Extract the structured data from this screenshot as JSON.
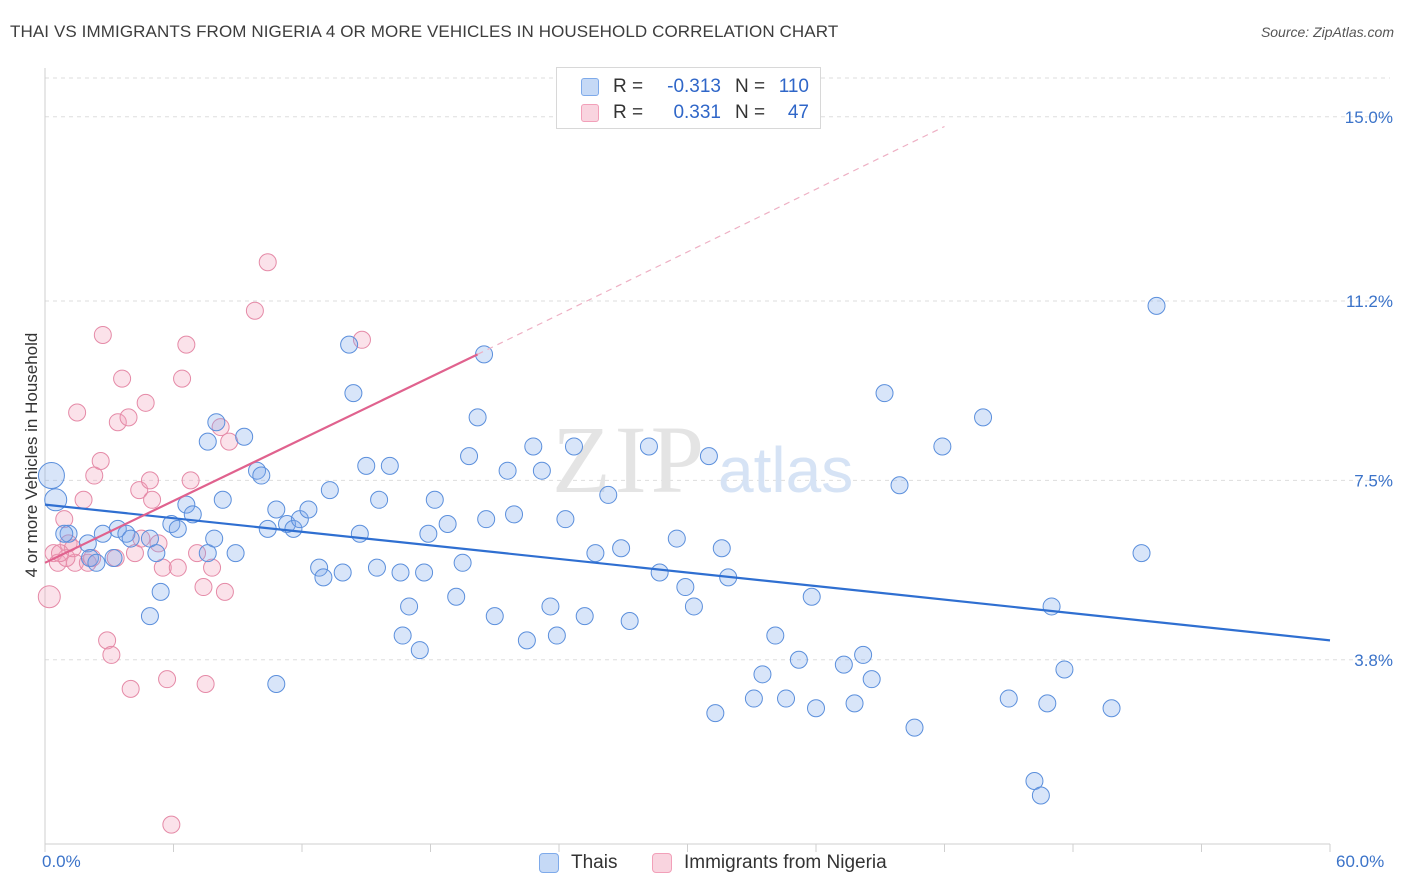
{
  "header": {
    "title": "THAI VS IMMIGRANTS FROM NIGERIA 4 OR MORE VEHICLES IN HOUSEHOLD CORRELATION CHART",
    "source": "Source: ZipAtlas.com"
  },
  "watermark": {
    "zip": "ZIP",
    "atlas": "atlas"
  },
  "legend": {
    "rows": [
      {
        "r_label": "R =",
        "r_value": "-0.313",
        "n_label": "N =",
        "n_value": "110",
        "color": "#7eaaea"
      },
      {
        "r_label": "R =",
        "r_value": "0.331",
        "n_label": "N =",
        "n_value": "47",
        "color": "#f2a0b9"
      }
    ]
  },
  "bottom_legend": {
    "items": [
      {
        "label": "Thais",
        "color": "#7eaaea"
      },
      {
        "label": "Immigrants from Nigeria",
        "color": "#f2a0b9"
      }
    ]
  },
  "colors": {
    "thai_fill": "rgba(126,170,234,0.30)",
    "thai_stroke": "#5b8fdc",
    "thai_line": "#2f6fd1",
    "nigeria_fill": "rgba(242,160,185,0.30)",
    "nigeria_stroke": "#e58aa7",
    "nigeria_line": "#e0628e",
    "grid": "#dddddd",
    "axis_text": "#3b73c9"
  },
  "chart_data": {
    "type": "scatter",
    "title": "THAI VS IMMIGRANTS FROM NIGERIA 4 OR MORE VEHICLES IN HOUSEHOLD CORRELATION CHART",
    "xlabel": "",
    "ylabel": "4 or more Vehicles in Household",
    "xlim": [
      0,
      60
    ],
    "ylim": [
      0,
      15.8
    ],
    "x_tick_labels": [
      "0.0%",
      "60.0%"
    ],
    "y_ticks": [
      3.8,
      7.5,
      11.2,
      15.0
    ],
    "y_tick_labels": [
      "3.8%",
      "7.5%",
      "11.2%",
      "15.0%"
    ],
    "grid": true,
    "legend_position": "top-center",
    "series": [
      {
        "name": "Thais",
        "r": -0.313,
        "n": 110,
        "trend": {
          "x": [
            0,
            60
          ],
          "y": [
            7.0,
            4.2
          ]
        },
        "points": [
          [
            0.3,
            7.6
          ],
          [
            0.5,
            7.1
          ],
          [
            1.1,
            6.4
          ],
          [
            2.0,
            6.2
          ],
          [
            2.1,
            5.9
          ],
          [
            2.4,
            5.8
          ],
          [
            2.7,
            6.4
          ],
          [
            3.2,
            5.9
          ],
          [
            3.4,
            6.5
          ],
          [
            3.8,
            6.4
          ],
          [
            4.0,
            6.3
          ],
          [
            4.9,
            6.3
          ],
          [
            5.2,
            6.0
          ],
          [
            5.4,
            5.2
          ],
          [
            5.9,
            6.6
          ],
          [
            6.2,
            6.5
          ],
          [
            6.6,
            7.0
          ],
          [
            6.9,
            6.8
          ],
          [
            7.6,
            6.0
          ],
          [
            7.9,
            6.3
          ],
          [
            7.6,
            8.3
          ],
          [
            8.0,
            8.7
          ],
          [
            8.3,
            7.1
          ],
          [
            8.9,
            6.0
          ],
          [
            9.3,
            8.4
          ],
          [
            9.9,
            7.7
          ],
          [
            10.1,
            7.6
          ],
          [
            10.4,
            6.5
          ],
          [
            10.8,
            6.9
          ],
          [
            11.3,
            6.6
          ],
          [
            11.6,
            6.5
          ],
          [
            11.9,
            6.7
          ],
          [
            12.3,
            6.9
          ],
          [
            12.8,
            5.7
          ],
          [
            13.0,
            5.5
          ],
          [
            13.3,
            7.3
          ],
          [
            13.9,
            5.6
          ],
          [
            14.2,
            10.3
          ],
          [
            14.4,
            9.3
          ],
          [
            14.7,
            6.4
          ],
          [
            15.0,
            7.8
          ],
          [
            15.5,
            5.7
          ],
          [
            15.6,
            7.1
          ],
          [
            16.1,
            7.8
          ],
          [
            16.6,
            5.6
          ],
          [
            16.7,
            4.3
          ],
          [
            17.0,
            4.9
          ],
          [
            17.5,
            4.0
          ],
          [
            17.7,
            5.6
          ],
          [
            17.9,
            6.4
          ],
          [
            18.2,
            7.1
          ],
          [
            18.8,
            6.6
          ],
          [
            19.2,
            5.1
          ],
          [
            19.5,
            5.8
          ],
          [
            19.8,
            8.0
          ],
          [
            20.2,
            8.8
          ],
          [
            20.5,
            10.1
          ],
          [
            20.6,
            6.7
          ],
          [
            21.0,
            4.7
          ],
          [
            21.6,
            7.7
          ],
          [
            21.9,
            6.8
          ],
          [
            22.5,
            4.2
          ],
          [
            22.8,
            8.2
          ],
          [
            23.2,
            7.7
          ],
          [
            23.6,
            4.9
          ],
          [
            23.9,
            4.3
          ],
          [
            24.3,
            6.7
          ],
          [
            24.7,
            8.2
          ],
          [
            25.2,
            4.7
          ],
          [
            25.7,
            6.0
          ],
          [
            26.3,
            7.2
          ],
          [
            26.9,
            6.1
          ],
          [
            27.3,
            4.6
          ],
          [
            28.2,
            8.2
          ],
          [
            28.7,
            5.6
          ],
          [
            29.5,
            6.3
          ],
          [
            29.9,
            5.3
          ],
          [
            30.3,
            4.9
          ],
          [
            31.0,
            8.0
          ],
          [
            31.6,
            6.1
          ],
          [
            31.9,
            5.5
          ],
          [
            31.3,
            2.7
          ],
          [
            33.1,
            3.0
          ],
          [
            33.5,
            3.5
          ],
          [
            34.1,
            4.3
          ],
          [
            34.6,
            3.0
          ],
          [
            35.2,
            3.8
          ],
          [
            35.8,
            5.1
          ],
          [
            36.0,
            2.8
          ],
          [
            37.3,
            3.7
          ],
          [
            37.8,
            2.9
          ],
          [
            38.2,
            3.9
          ],
          [
            38.6,
            3.4
          ],
          [
            39.2,
            9.3
          ],
          [
            39.9,
            7.4
          ],
          [
            40.6,
            2.4
          ],
          [
            41.9,
            8.2
          ],
          [
            43.8,
            8.8
          ],
          [
            45.0,
            3.0
          ],
          [
            46.2,
            1.3
          ],
          [
            46.5,
            1.0
          ],
          [
            46.8,
            2.9
          ],
          [
            47.0,
            4.9
          ],
          [
            47.6,
            3.6
          ],
          [
            49.8,
            2.8
          ],
          [
            51.2,
            6.0
          ],
          [
            51.9,
            11.1
          ],
          [
            0.9,
            6.4
          ],
          [
            10.8,
            3.3
          ],
          [
            4.9,
            4.7
          ]
        ]
      },
      {
        "name": "Immigrants from Nigeria",
        "r": 0.331,
        "n": 47,
        "trend": {
          "x": [
            0,
            20.2
          ],
          "y": [
            5.8,
            10.1
          ],
          "extended": {
            "x": [
              20.2,
              42
            ],
            "y": [
              10.1,
              14.8
            ]
          }
        },
        "points": [
          [
            0.2,
            5.1
          ],
          [
            0.4,
            6.0
          ],
          [
            0.6,
            5.8
          ],
          [
            0.9,
            6.7
          ],
          [
            1.1,
            6.2
          ],
          [
            1.4,
            5.8
          ],
          [
            1.5,
            8.9
          ],
          [
            1.8,
            7.1
          ],
          [
            2.0,
            5.8
          ],
          [
            2.3,
            7.6
          ],
          [
            2.6,
            7.9
          ],
          [
            2.7,
            10.5
          ],
          [
            2.9,
            4.2
          ],
          [
            3.1,
            3.9
          ],
          [
            3.4,
            8.7
          ],
          [
            3.6,
            9.6
          ],
          [
            3.9,
            8.8
          ],
          [
            4.0,
            3.2
          ],
          [
            4.2,
            6.0
          ],
          [
            4.4,
            7.3
          ],
          [
            4.5,
            6.3
          ],
          [
            4.7,
            9.1
          ],
          [
            4.9,
            7.5
          ],
          [
            5.0,
            7.1
          ],
          [
            5.3,
            6.2
          ],
          [
            5.5,
            5.7
          ],
          [
            5.7,
            3.4
          ],
          [
            5.9,
            0.4
          ],
          [
            6.2,
            5.7
          ],
          [
            6.4,
            9.6
          ],
          [
            6.6,
            10.3
          ],
          [
            6.8,
            7.5
          ],
          [
            7.1,
            6.0
          ],
          [
            7.4,
            5.3
          ],
          [
            7.5,
            3.3
          ],
          [
            7.8,
            5.7
          ],
          [
            8.2,
            8.6
          ],
          [
            8.4,
            5.2
          ],
          [
            8.6,
            8.3
          ],
          [
            9.8,
            11.0
          ],
          [
            10.4,
            12.0
          ],
          [
            14.8,
            10.4
          ],
          [
            1.0,
            5.9
          ],
          [
            1.3,
            6.1
          ],
          [
            2.2,
            5.9
          ],
          [
            3.3,
            5.9
          ],
          [
            0.7,
            6.0
          ]
        ]
      }
    ]
  }
}
